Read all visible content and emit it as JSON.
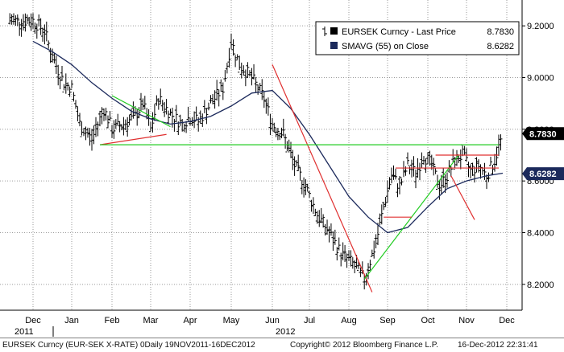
{
  "chart_data": {
    "type": "ohlc",
    "legend": [
      {
        "label": "EURSEK Curncy - Last Price",
        "value": "8.7830",
        "color": "#000000"
      },
      {
        "label": "SMAVG (55) on Close",
        "value": "8.6282",
        "color": "#1c2a5c"
      }
    ],
    "legend_position": "top-right",
    "x_ticks": [
      "Dec",
      "Jan",
      "Feb",
      "Mar",
      "Apr",
      "May",
      "Jun",
      "Jul",
      "Aug",
      "Sep",
      "Oct",
      "Nov",
      "Dec"
    ],
    "year_labels": [
      "2011",
      "2012"
    ],
    "y_ticks": [
      "9.2000",
      "9.0000",
      "8.8000",
      "8.6000",
      "8.4000",
      "8.2000"
    ],
    "ylim": [
      8.1,
      9.3
    ],
    "grid": true,
    "last_price_tag": "8.7830",
    "sma_tag": "8.6282",
    "price_path_months": [
      0,
      0.3,
      0.5,
      0.8,
      1,
      1.2,
      1.5,
      1.8,
      2,
      2.3,
      2.6,
      2.8,
      3,
      3.2,
      3.5,
      3.8,
      4,
      4.2,
      4.5,
      4.8,
      5,
      5.2,
      5.5,
      5.8,
      6,
      6.3,
      6.6,
      6.9,
      7.2,
      7.5,
      7.8,
      8.1,
      8.4,
      8.7,
      8.9,
      9.1,
      9.3,
      9.5,
      9.7,
      9.9,
      10.1,
      10.3,
      10.5,
      10.7,
      10.9,
      11.1,
      11.3,
      11.5,
      11.7,
      11.9
    ],
    "price_path_values": [
      9.22,
      9.18,
      9.08,
      8.98,
      8.96,
      8.82,
      8.76,
      8.88,
      8.8,
      8.82,
      8.85,
      8.9,
      8.8,
      8.92,
      8.86,
      8.82,
      8.85,
      8.83,
      8.9,
      8.96,
      9.14,
      9.05,
      9.0,
      8.92,
      8.82,
      8.78,
      8.66,
      8.58,
      8.47,
      8.4,
      8.32,
      8.28,
      8.22,
      8.36,
      8.5,
      8.62,
      8.58,
      8.66,
      8.63,
      8.7,
      8.66,
      8.58,
      8.62,
      8.68,
      8.7,
      8.64,
      8.66,
      8.62,
      8.68,
      8.78
    ],
    "sma_months": [
      0,
      0.5,
      1,
      1.5,
      2,
      2.5,
      3,
      3.5,
      4,
      4.5,
      5,
      5.5,
      6,
      6.5,
      7,
      7.5,
      8,
      8.5,
      9,
      9.5,
      10,
      10.5,
      11,
      11.5,
      11.9
    ],
    "sma_values": [
      9.14,
      9.1,
      9.05,
      8.98,
      8.92,
      8.87,
      8.84,
      8.82,
      8.83,
      8.85,
      8.89,
      8.94,
      8.95,
      8.88,
      8.78,
      8.66,
      8.54,
      8.46,
      8.4,
      8.42,
      8.5,
      8.57,
      8.6,
      8.62,
      8.63
    ],
    "trend_lines": [
      {
        "color": "#e03030",
        "points": [
          [
            6.0,
            9.05
          ],
          [
            8.6,
            8.17
          ]
        ]
      },
      {
        "color": "#22cc22",
        "points": [
          [
            8.4,
            8.22
          ],
          [
            10.8,
            8.7
          ]
        ]
      },
      {
        "color": "#e03030",
        "points": [
          [
            10.6,
            8.62
          ],
          [
            11.2,
            8.45
          ]
        ]
      },
      {
        "color": "#22cc22",
        "points": [
          [
            2.0,
            8.93
          ],
          [
            3.5,
            8.81
          ]
        ]
      },
      {
        "color": "#e03030",
        "points": [
          [
            1.7,
            8.74
          ],
          [
            3.4,
            8.78
          ]
        ]
      },
      {
        "color": "#22cc22",
        "points": [
          [
            1.7,
            8.74
          ],
          [
            11.8,
            8.74
          ]
        ]
      },
      {
        "color": "#e03030",
        "points": [
          [
            9.2,
            8.65
          ],
          [
            11.8,
            8.65
          ]
        ]
      },
      {
        "color": "#e03030",
        "points": [
          [
            10.2,
            8.7
          ],
          [
            11.8,
            8.7
          ]
        ]
      },
      {
        "color": "#e03030",
        "points": [
          [
            8.9,
            8.46
          ],
          [
            9.6,
            8.46
          ]
        ]
      }
    ]
  },
  "footer": {
    "left": "EURSEK Curncy (EUR-SEK X-RATE) 0Daily 19NOV2011-16DEC2012",
    "center": "Copyright© 2012 Bloomberg Finance L.P.",
    "right": "16-Dec-2012 22:31:41"
  }
}
